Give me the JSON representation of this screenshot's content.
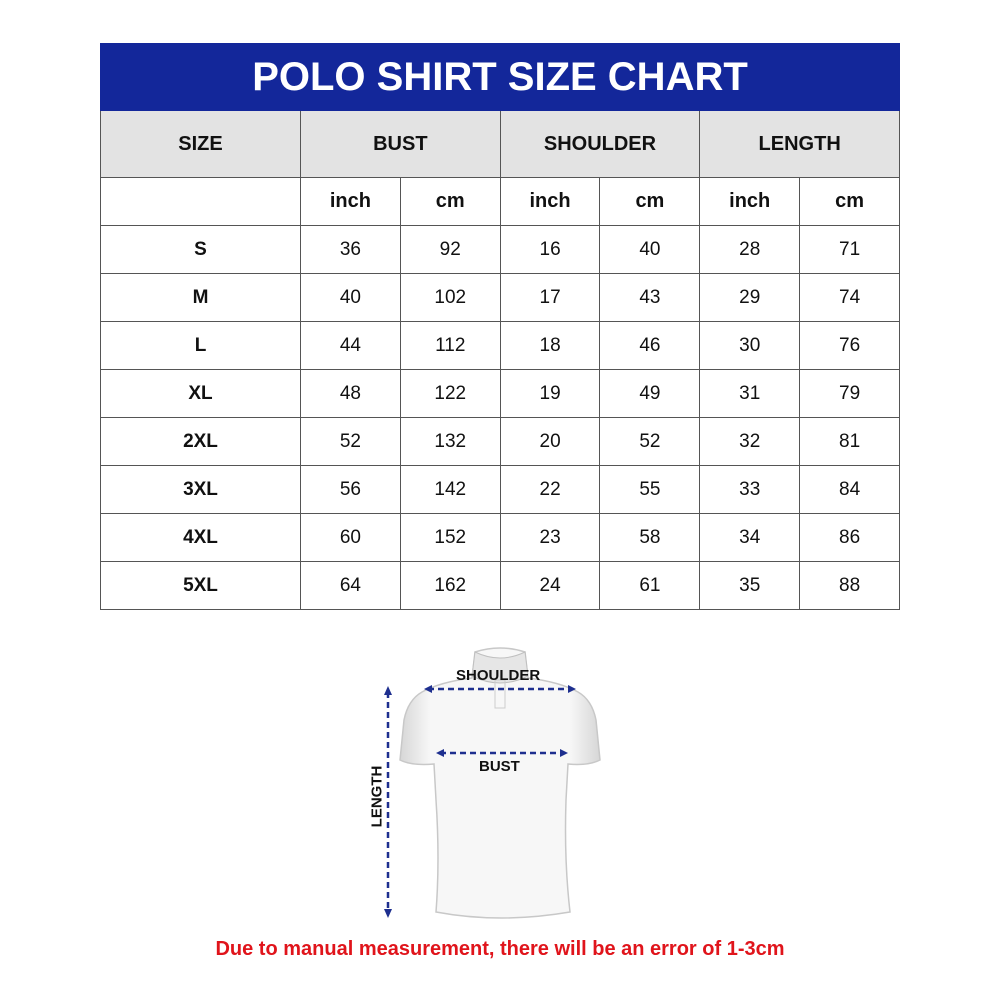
{
  "title": "POLO SHIRT SIZE CHART",
  "headers": {
    "size": "SIZE",
    "bust": "BUST",
    "shoulder": "SHOULDER",
    "length": "LENGTH"
  },
  "units": [
    "inch",
    "cm",
    "inch",
    "cm",
    "inch",
    "cm"
  ],
  "rows": [
    {
      "size": "S",
      "values": [
        "36",
        "92",
        "16",
        "40",
        "28",
        "71"
      ]
    },
    {
      "size": "M",
      "values": [
        "40",
        "102",
        "17",
        "43",
        "29",
        "74"
      ]
    },
    {
      "size": "L",
      "values": [
        "44",
        "112",
        "18",
        "46",
        "30",
        "76"
      ]
    },
    {
      "size": "XL",
      "values": [
        "48",
        "122",
        "19",
        "49",
        "31",
        "79"
      ]
    },
    {
      "size": "2XL",
      "values": [
        "52",
        "132",
        "20",
        "52",
        "32",
        "81"
      ]
    },
    {
      "size": "3XL",
      "values": [
        "56",
        "142",
        "22",
        "55",
        "33",
        "84"
      ]
    },
    {
      "size": "4XL",
      "values": [
        "60",
        "152",
        "23",
        "58",
        "34",
        "86"
      ]
    },
    {
      "size": "5XL",
      "values": [
        "64",
        "162",
        "24",
        "61",
        "35",
        "88"
      ]
    }
  ],
  "diagram": {
    "shoulder_label": "SHOULDER",
    "bust_label": "BUST",
    "length_label": "LENGTH"
  },
  "note": "Due to manual measurement, there will be an error of 1-3cm",
  "colors": {
    "title_bg": "#13279a",
    "header_bg": "#e3e3e3",
    "arrow": "#1e2f8f",
    "note": "#e0141b"
  }
}
